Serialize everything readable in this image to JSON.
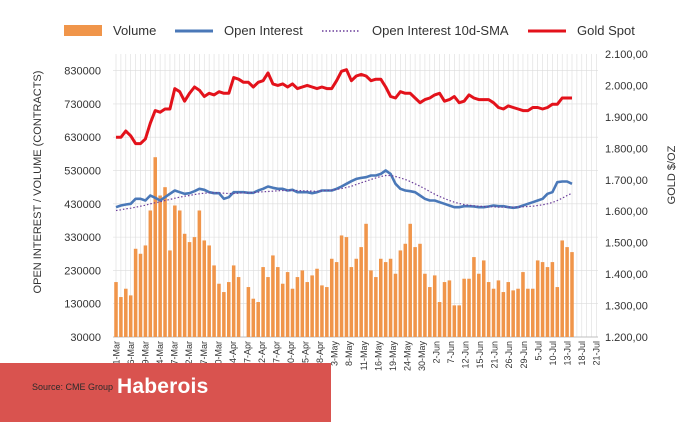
{
  "chart_data": {
    "type": "bar+line",
    "left_axis": {
      "label": "OPEN INTEREST / VOLUME (CONTRACTS)",
      "ylim": [
        30000,
        880000
      ],
      "ticks": [
        30000,
        130000,
        230000,
        330000,
        430000,
        530000,
        630000,
        730000,
        830000
      ],
      "tick_labels": [
        "30000",
        "130000",
        "230000",
        "330000",
        "430000",
        "530000",
        "630000",
        "730000",
        "830000"
      ]
    },
    "right_axis": {
      "label": "GOLD $/OZ",
      "ylim": [
        1200,
        2100
      ],
      "ticks": [
        1200,
        1300,
        1400,
        1500,
        1600,
        1700,
        1800,
        1900,
        2000,
        2100
      ],
      "tick_labels": [
        "1.200,00",
        "1.300,00",
        "1.400,00",
        "1.500,00",
        "1.600,00",
        "1.700,00",
        "1.800,00",
        "1.900,00",
        "2.000,00",
        "2.100,00"
      ]
    },
    "x_tick_labels": [
      "1-Mar",
      "6-Mar",
      "9-Mar",
      "14-Mar",
      "17-Mar",
      "22-Mar",
      "27-Mar",
      "30-Mar",
      "4-Apr",
      "7-Apr",
      "12-Apr",
      "17-Apr",
      "20-Apr",
      "25-Apr",
      "28-Apr",
      "3-May",
      "8-May",
      "11-May",
      "16-May",
      "19-May",
      "24-May",
      "30-May",
      "2-Jun",
      "7-Jun",
      "12-Jun",
      "15-Jun",
      "21-Jun",
      "26-Jun",
      "29-Jun",
      "5-Jul",
      "10-Jul",
      "13-Jul",
      "18-Jul",
      "21-Jul"
    ],
    "legend": [
      "Volume",
      "Open Interest",
      "Open Interest 10d-SMA",
      "Gold Spot"
    ],
    "colors": {
      "volume": "#f0954a",
      "open_interest": "#4a78b8",
      "sma": "#6a3d9a",
      "gold": "#e3121b",
      "grid": "#dcdcdc"
    },
    "series": [
      {
        "name": "Volume",
        "axis": "left",
        "values": [
          195000,
          150000,
          175000,
          155000,
          295000,
          280000,
          305000,
          410000,
          570000,
          455000,
          480000,
          290000,
          425000,
          410000,
          340000,
          315000,
          330000,
          410000,
          320000,
          305000,
          245000,
          190000,
          165000,
          195000,
          245000,
          210000,
          30000,
          180000,
          145000,
          135000,
          240000,
          210000,
          275000,
          240000,
          190000,
          225000,
          175000,
          210000,
          230000,
          195000,
          215000,
          235000,
          185000,
          180000,
          265000,
          255000,
          335000,
          330000,
          240000,
          265000,
          300000,
          370000,
          230000,
          210000,
          265000,
          255000,
          265000,
          220000,
          290000,
          310000,
          370000,
          300000,
          310000,
          220000,
          180000,
          215000,
          135000,
          195000,
          200000,
          125000,
          125000,
          205000,
          205000,
          270000,
          220000,
          260000,
          195000,
          175000,
          200000,
          165000,
          195000,
          170000,
          175000,
          225000,
          175000,
          175000,
          260000,
          255000,
          240000,
          255000,
          180000,
          320000,
          300000,
          285000
        ]
      },
      {
        "name": "Open Interest",
        "axis": "left",
        "values": [
          420000,
          425000,
          428000,
          430000,
          445000,
          445000,
          440000,
          455000,
          448000,
          440000,
          450000,
          460000,
          470000,
          465000,
          460000,
          462000,
          468000,
          475000,
          472000,
          465000,
          462000,
          462000,
          445000,
          450000,
          465000,
          465000,
          465000,
          463000,
          463000,
          470000,
          475000,
          482000,
          478000,
          475000,
          475000,
          470000,
          472000,
          465000,
          465000,
          465000,
          462000,
          465000,
          470000,
          470000,
          470000,
          475000,
          482000,
          490000,
          498000,
          505000,
          508000,
          510000,
          515000,
          515000,
          520000,
          530000,
          520000,
          490000,
          475000,
          470000,
          468000,
          465000,
          455000,
          445000,
          440000,
          440000,
          435000,
          430000,
          425000,
          420000,
          420000,
          423000,
          423000,
          422000,
          420000,
          420000,
          422000,
          425000,
          423000,
          423000,
          420000,
          418000,
          420000,
          425000,
          430000,
          435000,
          440000,
          445000,
          460000,
          465000,
          495000,
          497000,
          497000,
          490000
        ]
      },
      {
        "name": "Open Interest 10d-SMA",
        "axis": "left",
        "values": [
          410000,
          412000,
          415000,
          417000,
          420000,
          423000,
          426000,
          430000,
          433000,
          436000,
          440000,
          443000,
          447000,
          450000,
          453000,
          455000,
          458000,
          460000,
          462000,
          463000,
          463000,
          463000,
          462000,
          461000,
          461000,
          462000,
          463000,
          463000,
          464000,
          465000,
          466000,
          467000,
          468000,
          469000,
          470000,
          470000,
          470000,
          470000,
          469000,
          469000,
          468000,
          468000,
          469000,
          470000,
          471000,
          473000,
          476000,
          479000,
          483000,
          488000,
          493000,
          498000,
          503000,
          508000,
          512000,
          515000,
          515000,
          512000,
          508000,
          503000,
          497000,
          490000,
          483000,
          475000,
          467000,
          459000,
          452000,
          446000,
          440000,
          435000,
          431000,
          428000,
          426000,
          424000,
          423000,
          422000,
          421000,
          421000,
          420000,
          420000,
          420000,
          420000,
          420000,
          421000,
          422000,
          423000,
          425000,
          427000,
          430000,
          434000,
          440000,
          447000,
          455000,
          462000
        ]
      },
      {
        "name": "Gold Spot",
        "axis": "right",
        "values": [
          1835,
          1835,
          1855,
          1840,
          1815,
          1815,
          1830,
          1880,
          1920,
          1915,
          1925,
          1925,
          1990,
          1980,
          1950,
          1975,
          1995,
          1985,
          1965,
          1975,
          1970,
          1980,
          1975,
          1975,
          2025,
          2020,
          2010,
          2010,
          1995,
          2010,
          2015,
          2040,
          2005,
          2000,
          2005,
          1995,
          2005,
          1990,
          1995,
          2000,
          1995,
          1990,
          1995,
          1990,
          1990,
          2015,
          2045,
          2050,
          2015,
          2030,
          2035,
          2030,
          2015,
          2020,
          2020,
          1995,
          1965,
          1960,
          1980,
          1975,
          1975,
          1960,
          1945,
          1955,
          1960,
          1970,
          1975,
          1950,
          1955,
          1965,
          1945,
          1950,
          1970,
          1960,
          1955,
          1955,
          1955,
          1945,
          1930,
          1925,
          1935,
          1930,
          1925,
          1920,
          1920,
          1930,
          1930,
          1925,
          1930,
          1940,
          1940,
          1960,
          1960,
          1960
        ]
      }
    ]
  },
  "footer": {
    "source": "Source: CME Group",
    "brand": "Haberois"
  }
}
